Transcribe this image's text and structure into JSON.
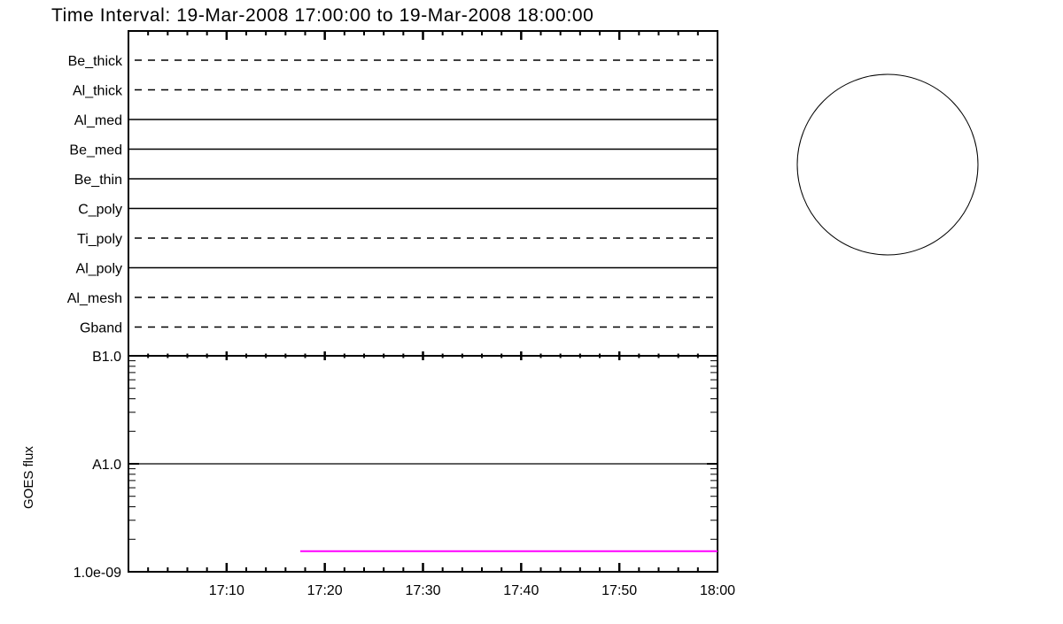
{
  "chart_data": {
    "type": "line",
    "title": "Time Interval: 19-Mar-2008 17:00:00 to 19-Mar-2008 18:00:00",
    "filter_panel": {
      "rows": [
        {
          "label": "Be_thick",
          "style": "dashed"
        },
        {
          "label": "Al_thick",
          "style": "dashed"
        },
        {
          "label": "Al_med",
          "style": "solid"
        },
        {
          "label": "Be_med",
          "style": "solid"
        },
        {
          "label": "Be_thin",
          "style": "solid"
        },
        {
          "label": "C_poly",
          "style": "solid"
        },
        {
          "label": "Ti_poly",
          "style": "dashed"
        },
        {
          "label": "Al_poly",
          "style": "solid"
        },
        {
          "label": "Al_mesh",
          "style": "dashed"
        },
        {
          "label": "Gband",
          "style": "dashed"
        }
      ]
    },
    "goes_panel": {
      "ylabel": "GOES flux",
      "yscale": "log",
      "ylim": [
        1e-09,
        1e-07
      ],
      "yticks": [
        {
          "value": 1e-07,
          "label": "B1.0"
        },
        {
          "value": 1e-08,
          "label": "A1.0"
        },
        {
          "value": 1e-09,
          "label": "1.0e-09"
        }
      ],
      "reference_line": {
        "value": 1e-08,
        "color": "#000000"
      },
      "series": [
        {
          "color": "#ff00ff",
          "x": [
            "17:17:30",
            "18:00:00"
          ],
          "y": [
            1.55e-09,
            1.55e-09
          ]
        }
      ]
    },
    "xlim": [
      "17:00",
      "18:00"
    ],
    "xticks": [
      "17:10",
      "17:20",
      "17:30",
      "17:40",
      "17:50",
      "18:00"
    ],
    "circle": true
  }
}
